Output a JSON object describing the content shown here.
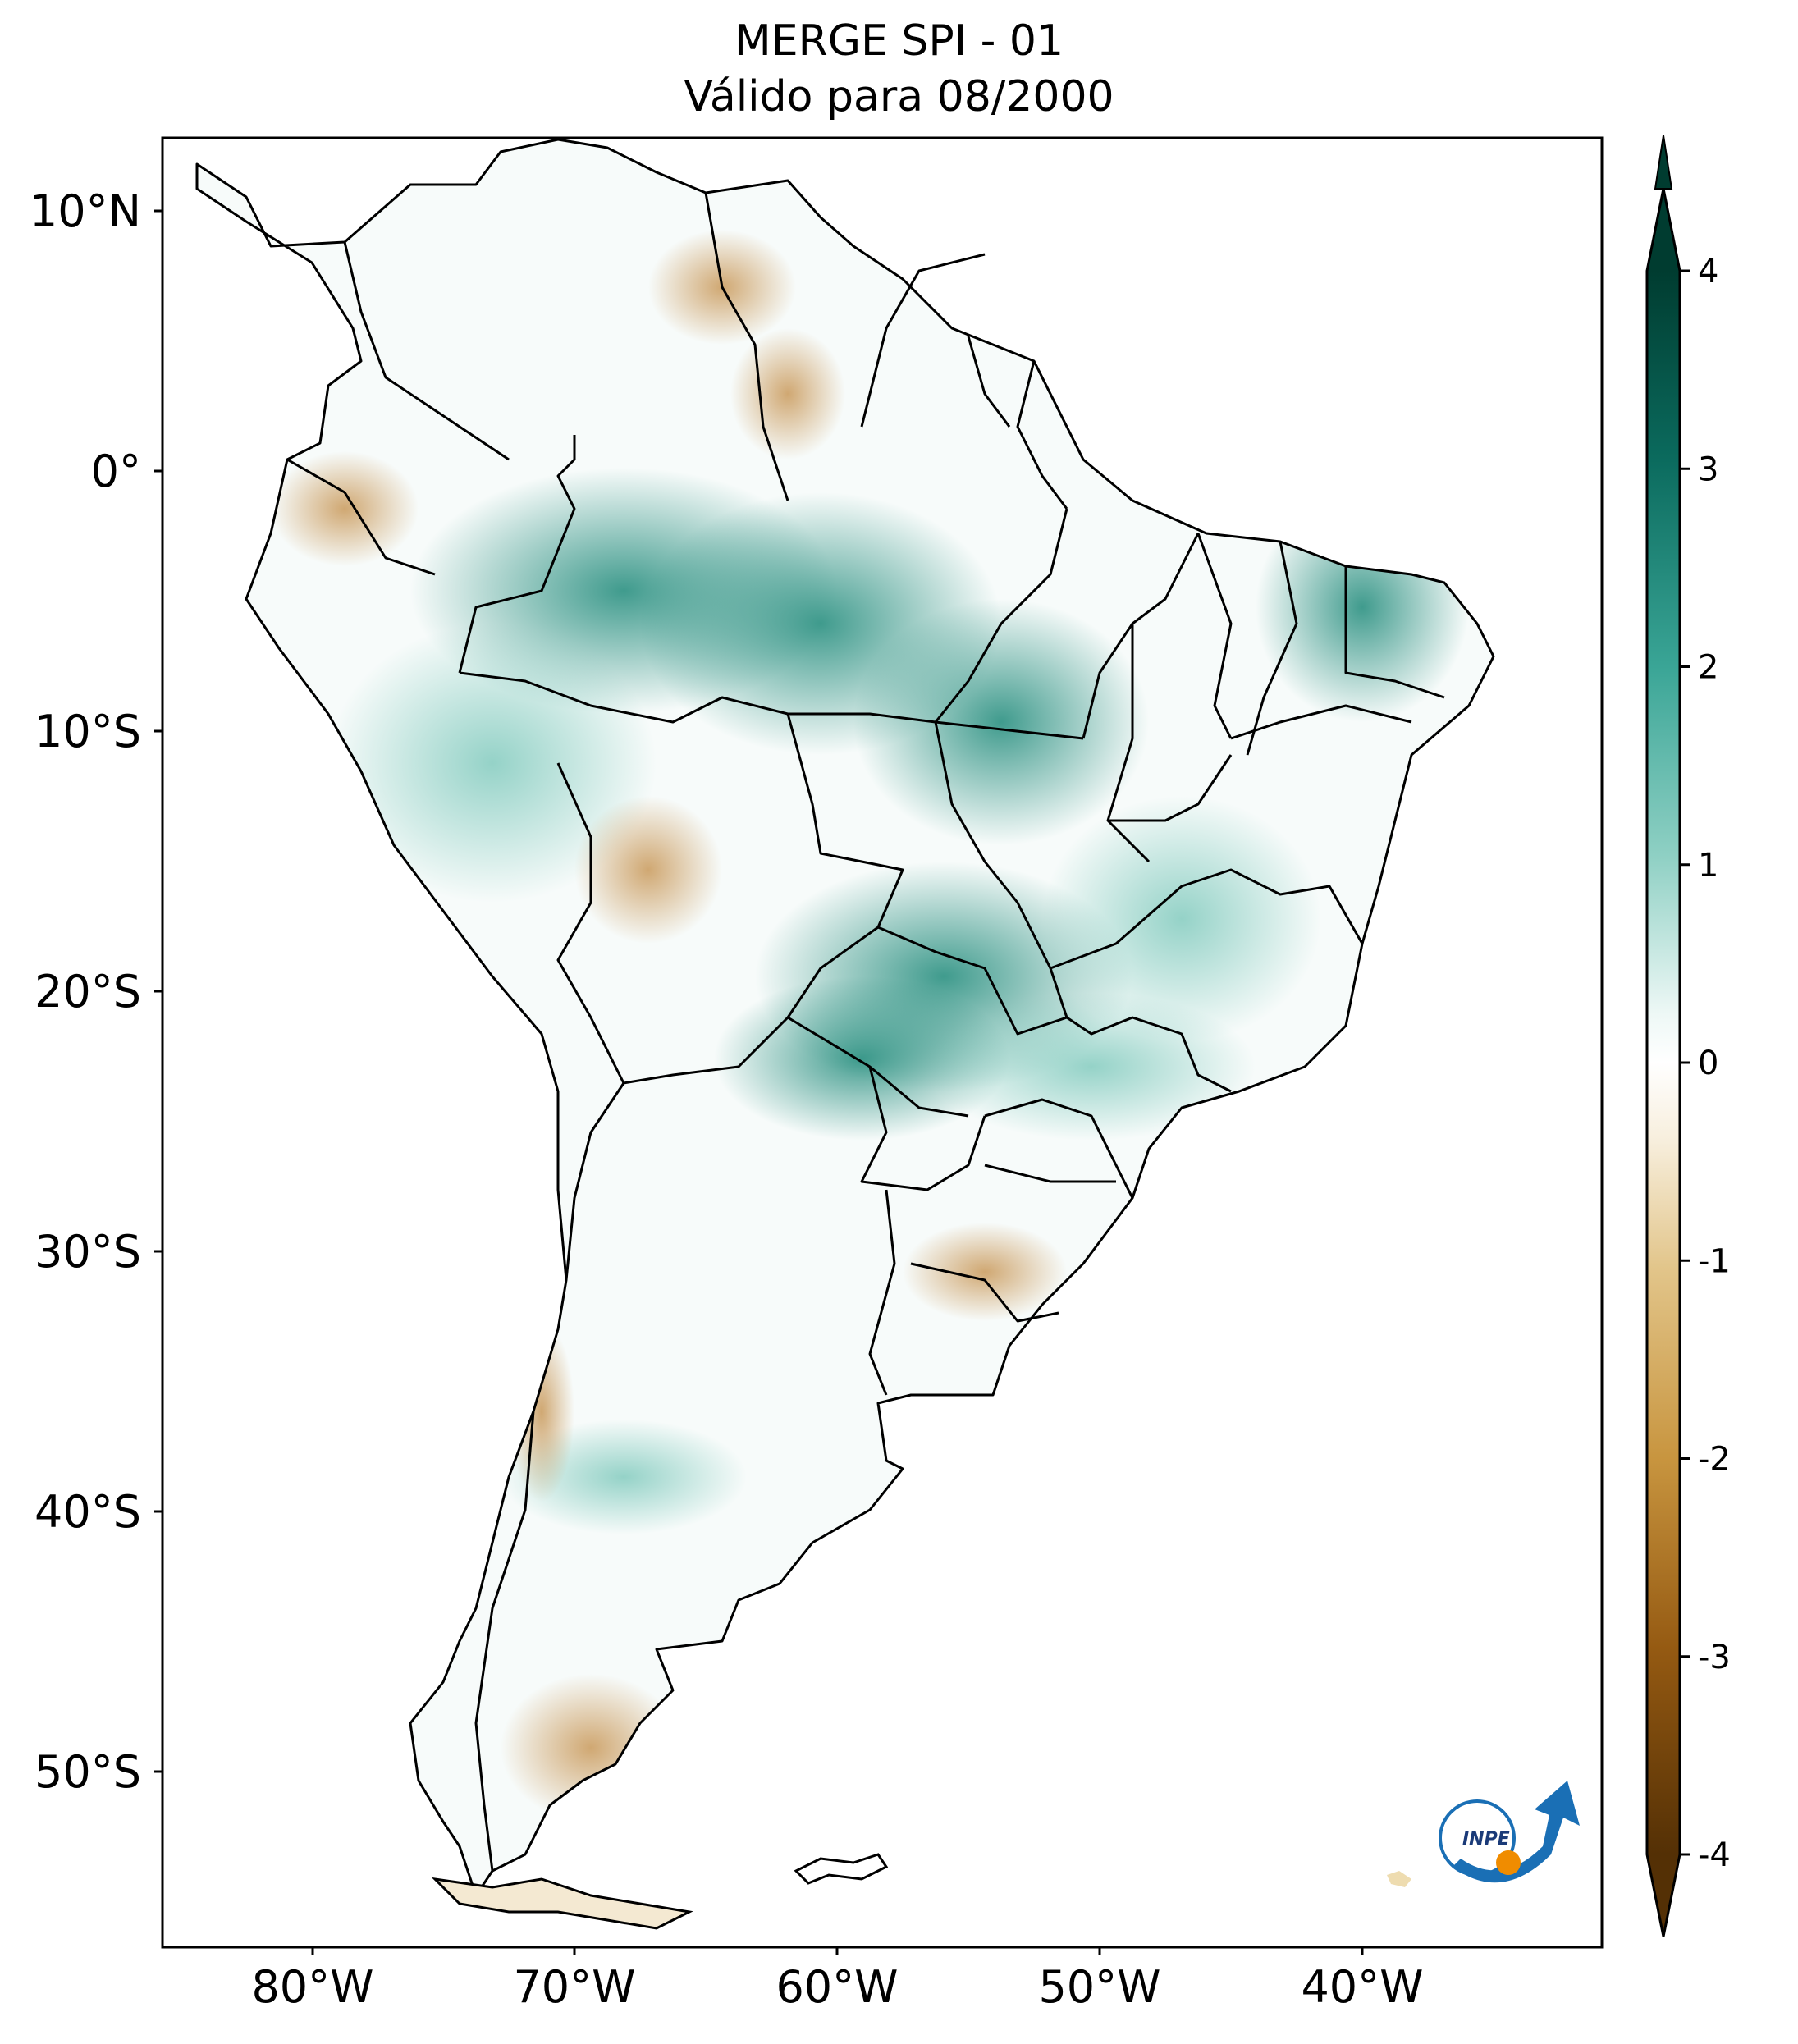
{
  "title": {
    "line1": "MERGE   SPI - 01",
    "line2": "Válido para 08/2000"
  },
  "map": {
    "lat_ticks": [
      "10°N",
      "0°",
      "10°S",
      "20°S",
      "30°S",
      "40°S",
      "50°S"
    ],
    "lon_ticks": [
      "80°W",
      "70°W",
      "60°W",
      "50°W",
      "40°W"
    ],
    "colors": {
      "frame": "#000000",
      "border": "#000000",
      "wet_dark": "#0b6b5e",
      "wet_mid": "#3aa596",
      "wet_light": "#bfe6df",
      "dry_light": "#eedcb0",
      "dry_mid": "#c99a4e",
      "dry_dark": "#6b3d0a"
    }
  },
  "colorbar": {
    "ticks": [
      "4",
      "3",
      "2",
      "1",
      "0",
      "-1",
      "-2",
      "-3",
      "-4"
    ],
    "min": -4,
    "max": 4
  },
  "logo": {
    "text": "INPE"
  }
}
